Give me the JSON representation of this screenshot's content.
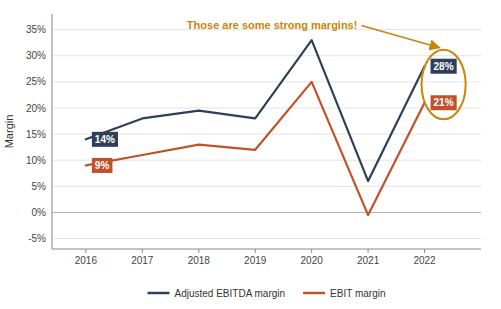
{
  "chart_data": {
    "type": "line",
    "x": [
      2016,
      2017,
      2018,
      2019,
      2020,
      2021,
      2022
    ],
    "series": [
      {
        "name": "Adjusted EBITDA margin",
        "color": "#2e4057",
        "values": [
          0.14,
          0.18,
          0.195,
          0.18,
          0.33,
          0.06,
          0.28
        ]
      },
      {
        "name": "EBIT margin",
        "color": "#c0522b",
        "values": [
          0.09,
          0.11,
          0.13,
          0.12,
          0.25,
          -0.005,
          0.21
        ]
      }
    ],
    "y_label": "Margin",
    "xlim": [
      2015.4,
      2023.0
    ],
    "xticks": [
      2016,
      2017,
      2018,
      2019,
      2020,
      2021,
      2022
    ],
    "ylim": [
      -0.07,
      0.38
    ],
    "yticks": [
      {
        "value": -0.05,
        "label": "-5%"
      },
      {
        "value": 0.0,
        "label": "0%"
      },
      {
        "value": 0.05,
        "label": "5%"
      },
      {
        "value": 0.1,
        "label": "10%"
      },
      {
        "value": 0.15,
        "label": "15%"
      },
      {
        "value": 0.2,
        "label": "20%"
      },
      {
        "value": 0.25,
        "label": "25%"
      },
      {
        "value": 0.3,
        "label": "30%"
      },
      {
        "value": 0.35,
        "label": "35%"
      }
    ],
    "grid": true,
    "legend": "bottom",
    "annotations": [
      {
        "text": "14%",
        "x": 2016,
        "y": 0.14,
        "color": "#2e4057"
      },
      {
        "text": "9%",
        "x": 2016,
        "y": 0.09,
        "color": "#c0522b"
      },
      {
        "text": "28%",
        "x": 2022,
        "y": 0.28,
        "color": "#2e4057"
      },
      {
        "text": "21%",
        "x": 2022,
        "y": 0.21,
        "color": "#c0522b"
      }
    ],
    "callout": {
      "text": "Those are some strong margins!",
      "x": 2019.3,
      "y": 0.358,
      "color": "#c8860a"
    }
  }
}
